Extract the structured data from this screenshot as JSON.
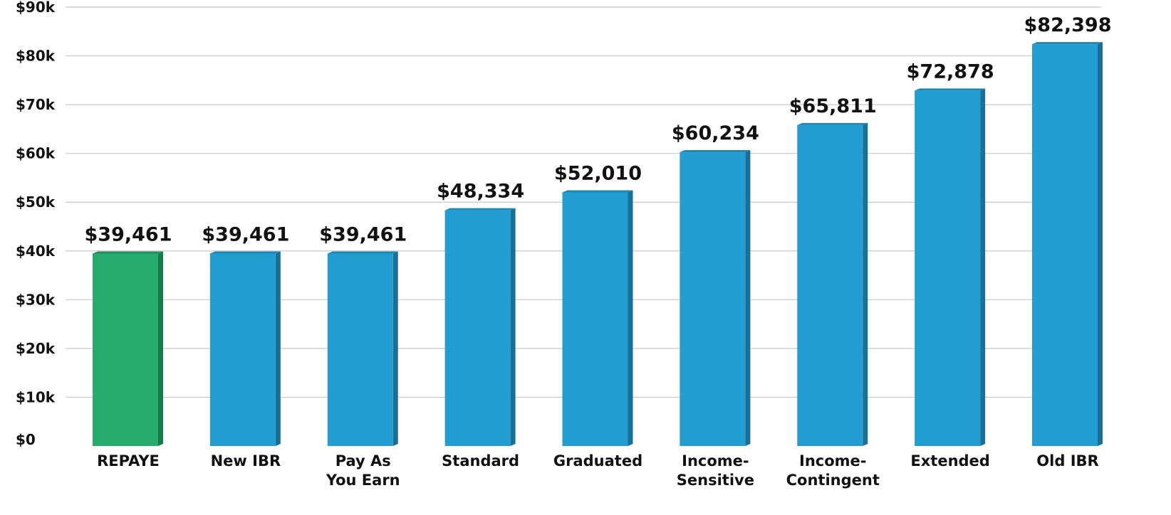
{
  "chart_data": {
    "type": "bar",
    "categories": [
      [
        "REPAYE"
      ],
      [
        "New IBR"
      ],
      [
        "Pay As",
        "You Earn"
      ],
      [
        "Standard"
      ],
      [
        "Graduated"
      ],
      [
        "Income-",
        "Sensitive"
      ],
      [
        "Income-",
        "Contingent"
      ],
      [
        "Extended"
      ],
      [
        "Old IBR"
      ]
    ],
    "values": [
      39461,
      39461,
      39461,
      48334,
      52010,
      60234,
      65811,
      72878,
      82398
    ],
    "data_labels": [
      "$39,461",
      "$39,461",
      "$39,461",
      "$48,334",
      "$52,010",
      "$60,234",
      "$65,811",
      "$72,878",
      "$82,398"
    ],
    "y_ticks": [
      "$0",
      "$10k",
      "$20k",
      "$30k",
      "$40k",
      "$50k",
      "$60k",
      "$70k",
      "$80k",
      "$90k"
    ],
    "ylim": [
      0,
      90000
    ],
    "grid": true,
    "highlight_index": 0,
    "colors": {
      "bar": "#239ED2",
      "bar_side": "#1A6F96",
      "bar_top": "#1C86B5",
      "highlight": "#27AB6E",
      "highlight_side": "#177A4B",
      "highlight_top": "#1E8F5A"
    }
  }
}
